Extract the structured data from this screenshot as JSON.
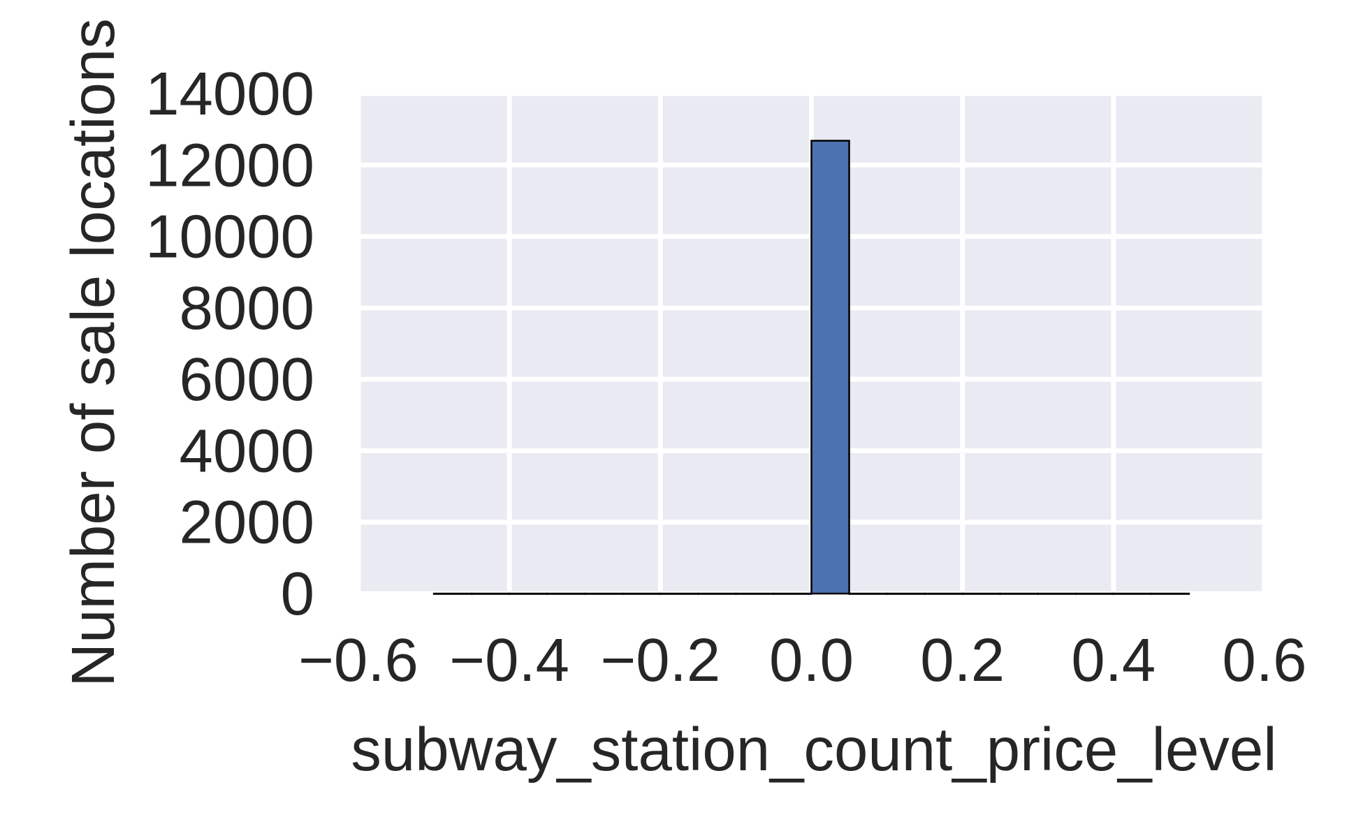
{
  "chart_data": {
    "type": "bar",
    "title": "",
    "xlabel": "subway_station_count_price_level",
    "ylabel": "Number of sale locations",
    "xlim": [
      -0.6,
      0.6
    ],
    "ylim": [
      0,
      14000
    ],
    "xticks": [
      -0.6,
      -0.4,
      -0.2,
      0.0,
      0.2,
      0.4,
      0.6
    ],
    "xtick_labels": [
      "−0.6",
      "−0.4",
      "−0.2",
      "0.0",
      "0.2",
      "0.4",
      "0.6"
    ],
    "yticks": [
      0,
      2000,
      4000,
      6000,
      8000,
      10000,
      12000,
      14000
    ],
    "ytick_labels": [
      "0",
      "2000",
      "4000",
      "6000",
      "8000",
      "10000",
      "12000",
      "14000"
    ],
    "bins": [
      {
        "x0": -0.5,
        "x1": -0.45,
        "value": 0
      },
      {
        "x0": -0.45,
        "x1": -0.4,
        "value": 0
      },
      {
        "x0": -0.4,
        "x1": -0.35,
        "value": 0
      },
      {
        "x0": -0.35,
        "x1": -0.3,
        "value": 0
      },
      {
        "x0": -0.3,
        "x1": -0.25,
        "value": 0
      },
      {
        "x0": -0.25,
        "x1": -0.2,
        "value": 0
      },
      {
        "x0": -0.2,
        "x1": -0.15,
        "value": 0
      },
      {
        "x0": -0.15,
        "x1": -0.1,
        "value": 0
      },
      {
        "x0": -0.1,
        "x1": -0.05,
        "value": 0
      },
      {
        "x0": -0.05,
        "x1": 0.0,
        "value": 0
      },
      {
        "x0": 0.0,
        "x1": 0.05,
        "value": 12680
      },
      {
        "x0": 0.05,
        "x1": 0.1,
        "value": 0
      },
      {
        "x0": 0.1,
        "x1": 0.15,
        "value": 0
      },
      {
        "x0": 0.15,
        "x1": 0.2,
        "value": 0
      },
      {
        "x0": 0.2,
        "x1": 0.25,
        "value": 0
      },
      {
        "x0": 0.25,
        "x1": 0.3,
        "value": 0
      },
      {
        "x0": 0.3,
        "x1": 0.35,
        "value": 0
      },
      {
        "x0": 0.35,
        "x1": 0.4,
        "value": 0
      },
      {
        "x0": 0.4,
        "x1": 0.45,
        "value": 0
      },
      {
        "x0": 0.45,
        "x1": 0.5,
        "value": 0
      }
    ],
    "grid": true,
    "colors": {
      "bar": "#4c72b0",
      "bar_edge": "#000000",
      "plot_bg": "#eaeaf2",
      "grid": "#ffffff",
      "text": "#262626"
    }
  }
}
